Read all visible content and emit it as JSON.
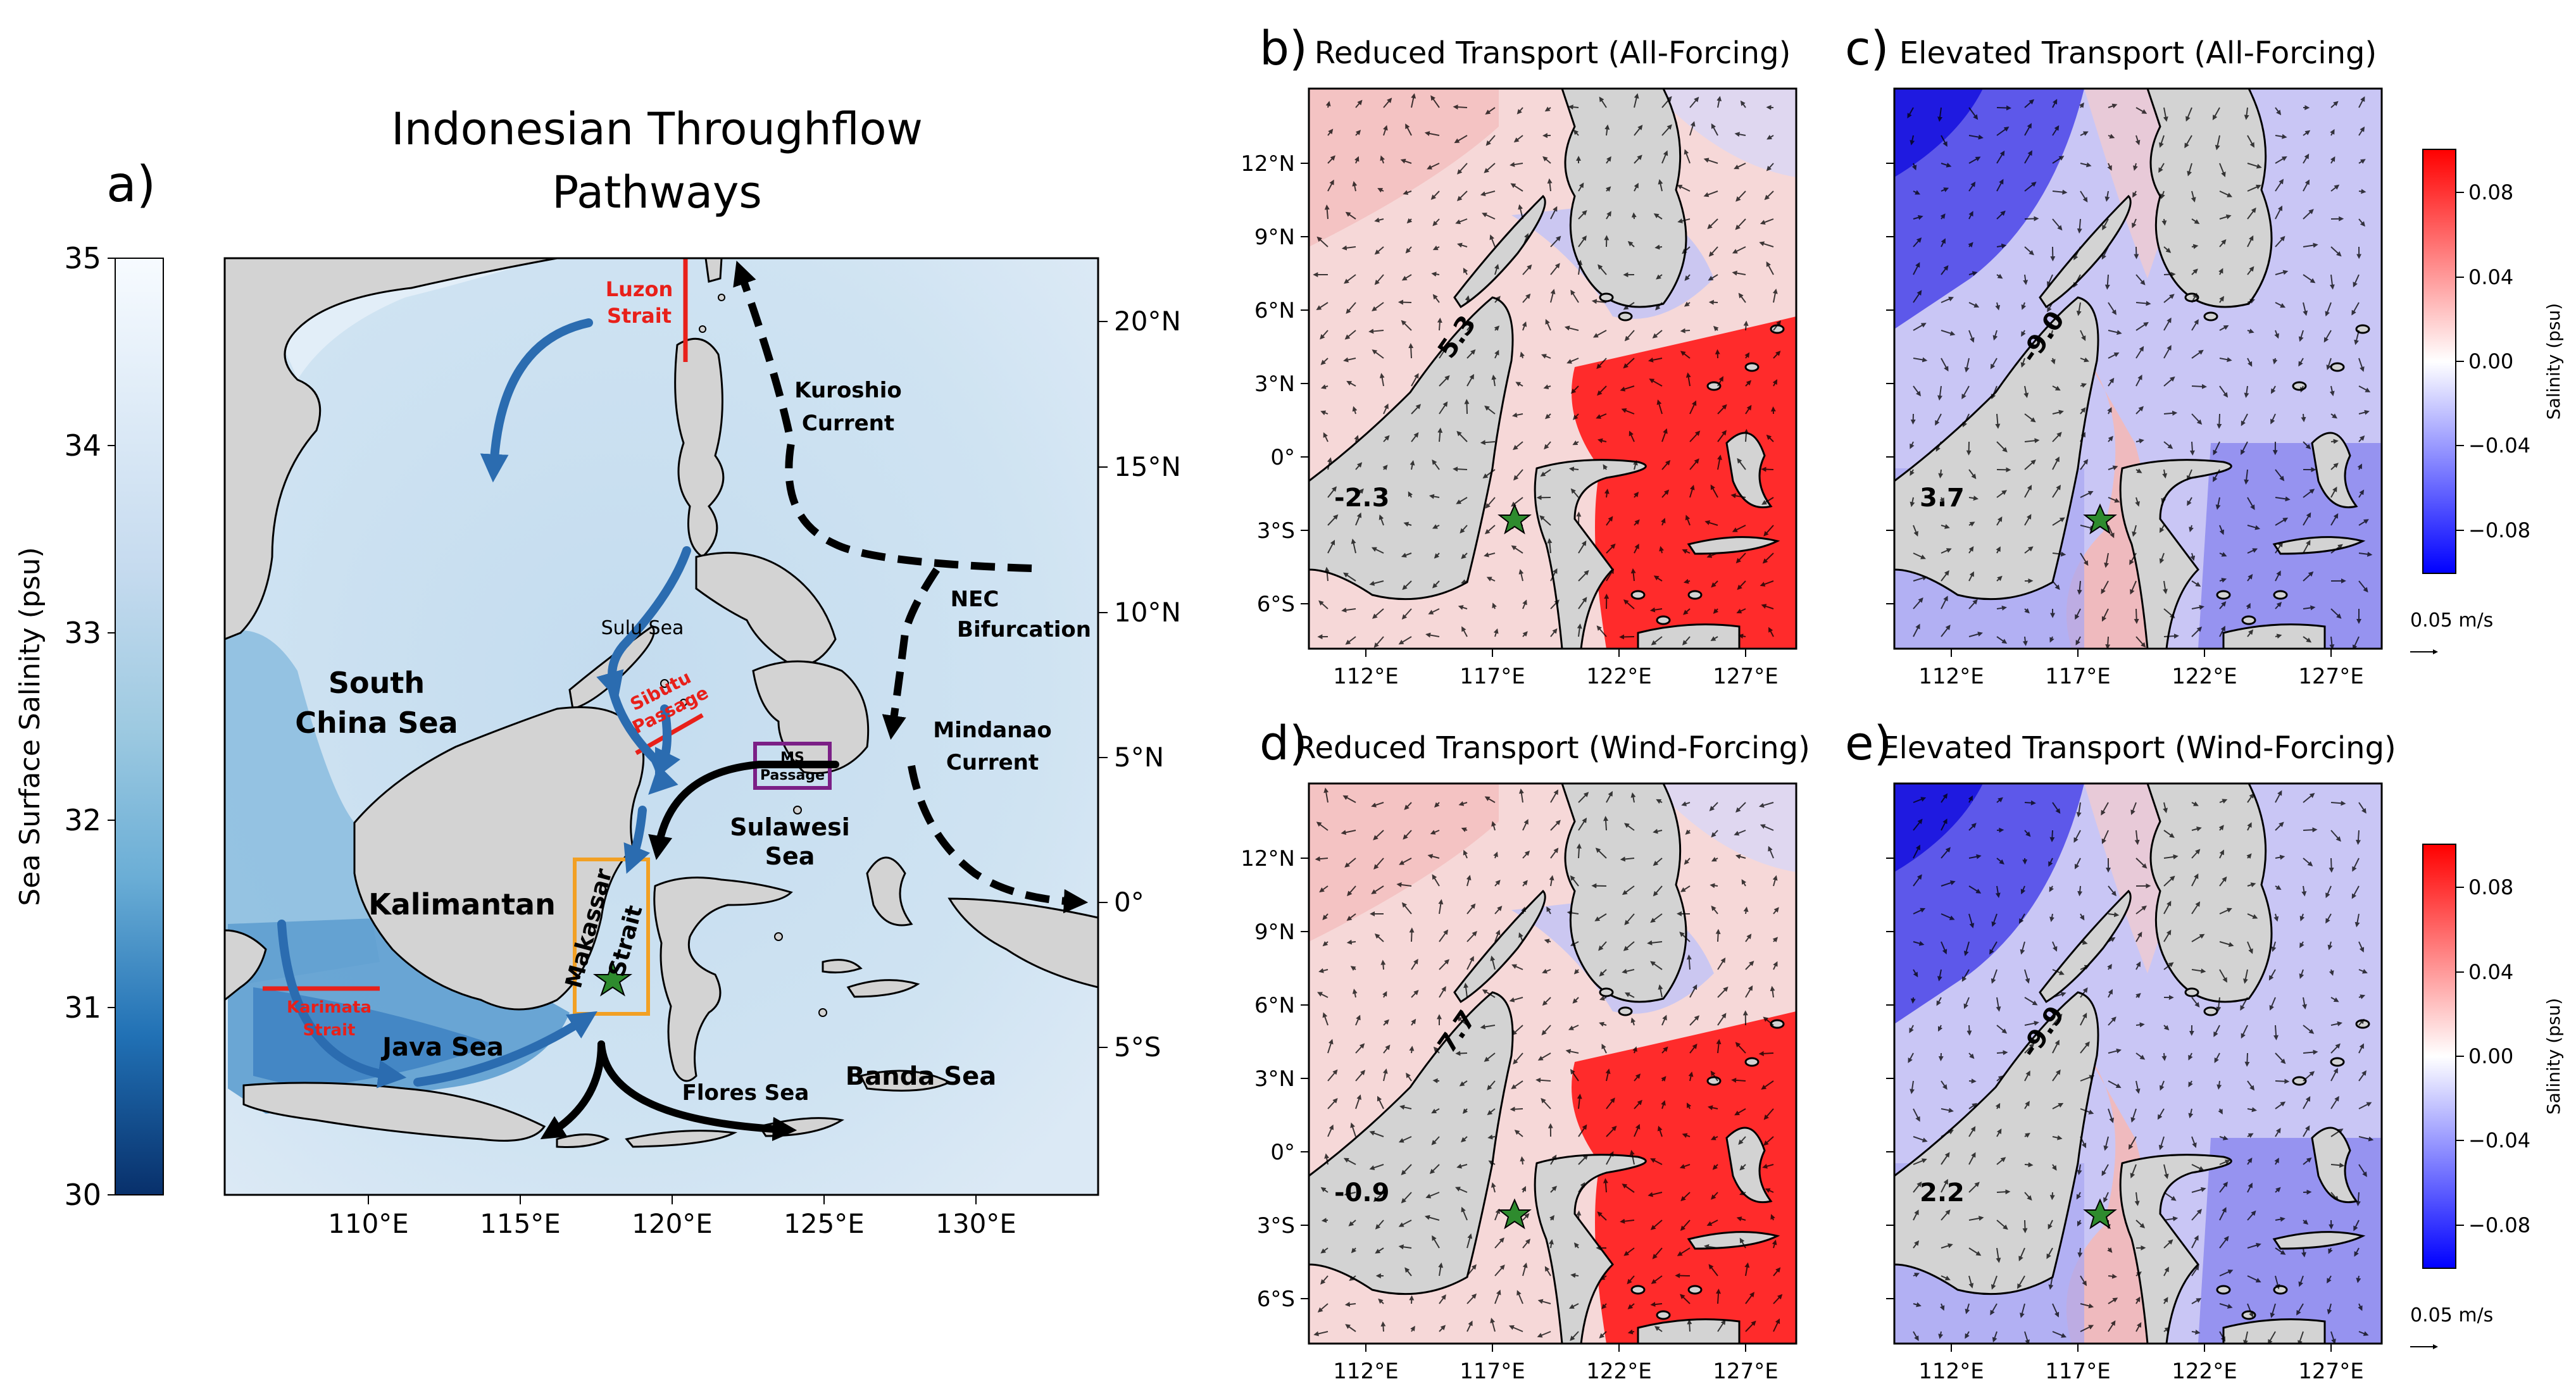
{
  "figure": {
    "panel_a": {
      "label": "a)",
      "title_line1": "Indonesian Throughflow",
      "title_line2": "Pathways",
      "colorbar_label": "Sea Surface Salinity (psu)",
      "colorbar_ticks": [
        "35",
        "34",
        "33",
        "32",
        "31",
        "30"
      ],
      "colorbar_range": [
        30,
        35
      ],
      "colormap": [
        "#f7fbff",
        "#c6dbef",
        "#9ecae1",
        "#6baed6",
        "#3182bd",
        "#08519c",
        "#08306b"
      ],
      "lat_ticks": [
        "20°N",
        "15°N",
        "10°N",
        "5°N",
        "0°",
        "5°S"
      ],
      "lon_ticks": [
        "110°E",
        "115°E",
        "120°E",
        "125°E",
        "130°E"
      ],
      "regions": {
        "south_china_sea_1": "South",
        "south_china_sea_2": "China Sea",
        "kalimantan": "Kalimantan",
        "sulu_sea": "Sulu Sea",
        "sulawesi_sea_1": "Sulawesi",
        "sulawesi_sea_2": "Sea",
        "java_sea": "Java Sea",
        "flores_sea": "Flores Sea",
        "banda_sea": "Banda Sea"
      },
      "passages": {
        "luzon_1": "Luzon",
        "luzon_2": "Strait",
        "sibutu_1": "Sibutu",
        "sibutu_2": "Passage",
        "karimata_1": "Karimata",
        "karimata_2": "Strait",
        "makassar_1": "Makassar",
        "makassar_2": "Strait",
        "ms_1": "MS",
        "ms_2": "Passage"
      },
      "currents": {
        "kuroshio_1": "Kuroshio",
        "kuroshio_2": "Current",
        "nec_1": "NEC",
        "nec_2": "Bifurcation",
        "mindanao_1": "Mindanao",
        "mindanao_2": "Current"
      },
      "colors": {
        "passage_line": "#e8201a",
        "pathway_arrow": "#2b6cb0",
        "box_makassar": "#f2a024",
        "box_ms": "#7b1f86"
      }
    },
    "panels": [
      {
        "label": "b)",
        "title": "Reduced Transport (All-Forcing)",
        "value_north": "5.3",
        "value_south": "-2.3",
        "pattern": "reduced"
      },
      {
        "label": "c)",
        "title": "Elevated Transport (All-Forcing)",
        "value_north": "-9.0",
        "value_south": "3.7",
        "pattern": "elevated"
      },
      {
        "label": "d)",
        "title": "Reduced Transport (Wind-Forcing)",
        "value_north": "7.7",
        "value_south": "-0.9",
        "pattern": "reduced"
      },
      {
        "label": "e)",
        "title": "Elevated Transport (Wind-Forcing)",
        "value_north": "-9.9",
        "value_south": "2.2",
        "pattern": "elevated"
      }
    ],
    "small_lat_ticks": [
      "12°N",
      "9°N",
      "6°N",
      "3°N",
      "0°",
      "3°S",
      "6°S"
    ],
    "small_lon_ticks": [
      "112°E",
      "117°E",
      "122°E",
      "127°E"
    ],
    "anomaly_colorbar": {
      "label": "Salinity (psu)",
      "ticks": [
        "0.08",
        "0.04",
        "0.00",
        "−0.04",
        "−0.08"
      ],
      "range": [
        -0.1,
        0.1
      ],
      "colors": {
        "positive": "#ff1a1a",
        "neutral": "#ffffff",
        "negative": "#1a1aff"
      }
    },
    "reference_vector": "0.05 m/s",
    "land_color": "#d3d3d3",
    "star_color": "#2e8b2e"
  }
}
